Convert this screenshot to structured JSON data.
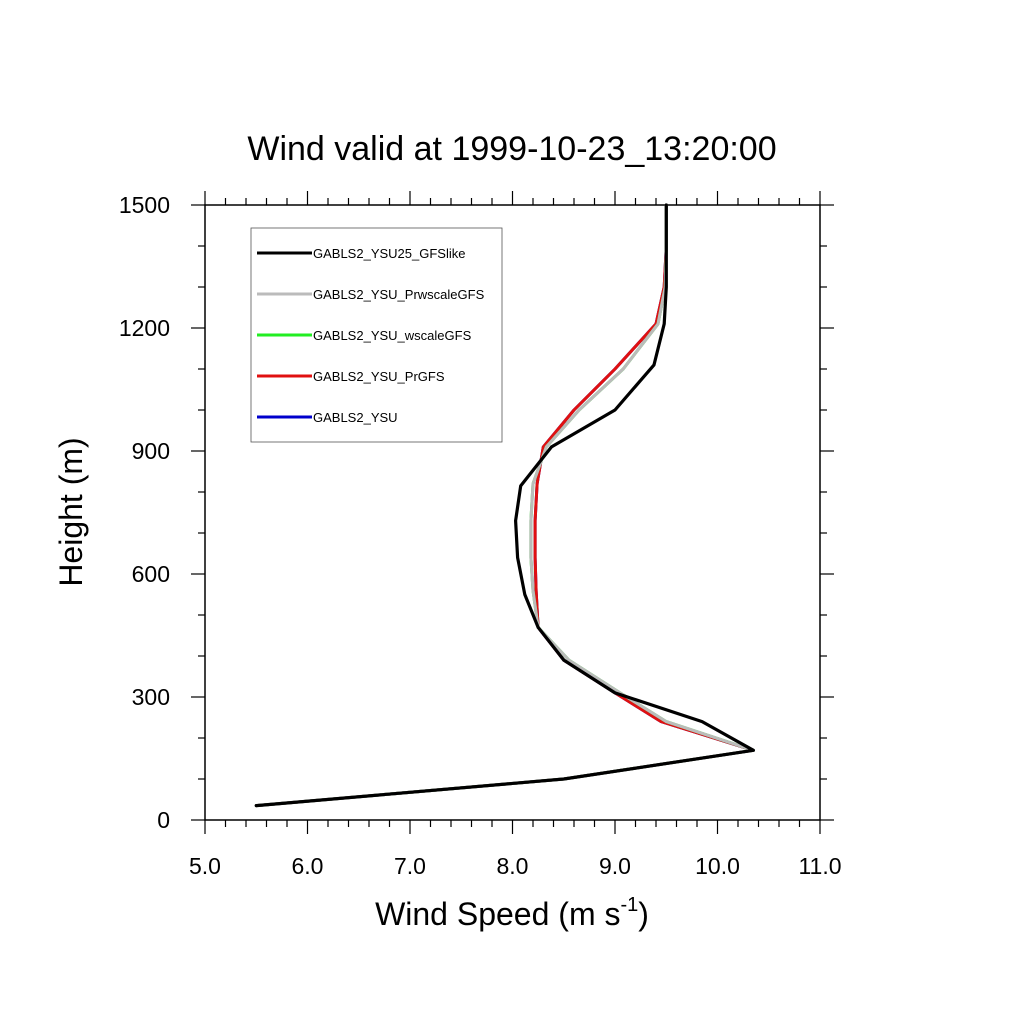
{
  "chart_data": {
    "type": "line",
    "title": "Wind valid at 1999-10-23_13:20:00",
    "xlabel": "Wind Speed (m s",
    "xlabel_superscript": "-1",
    "xlabel_suffix": ")",
    "ylabel": "Height (m)",
    "xlim": [
      5.0,
      11.0
    ],
    "ylim": [
      0,
      1500
    ],
    "x_ticks": [
      5.0,
      6.0,
      7.0,
      8.0,
      9.0,
      10.0,
      11.0
    ],
    "x_tick_labels": [
      "5.0",
      "6.0",
      "7.0",
      "8.0",
      "9.0",
      "10.0",
      "11.0"
    ],
    "y_ticks": [
      0,
      300,
      600,
      900,
      1200,
      1500
    ],
    "y_tick_labels": [
      "0",
      "300",
      "600",
      "900",
      "1200",
      "1500"
    ],
    "grid": false,
    "legend_position": "top-left",
    "series": [
      {
        "name": "GABLS2_YSU",
        "color": "#0000cc",
        "x": [
          5.5,
          8.5,
          10.35,
          9.45,
          9.0,
          8.5,
          8.25,
          8.23,
          8.22,
          8.22,
          8.24,
          8.3,
          8.6,
          9.0,
          9.4,
          9.48,
          9.5,
          9.5
        ],
        "y": [
          35,
          100,
          170,
          240,
          310,
          390,
          470,
          560,
          640,
          730,
          820,
          910,
          1000,
          1100,
          1210,
          1300,
          1400,
          1500
        ]
      },
      {
        "name": "GABLS2_YSU_PrGFS",
        "color": "#e01010",
        "x": [
          5.5,
          8.5,
          10.35,
          9.45,
          9.0,
          8.5,
          8.25,
          8.23,
          8.22,
          8.22,
          8.24,
          8.3,
          8.6,
          9.0,
          9.4,
          9.48,
          9.5,
          9.5
        ],
        "y": [
          35,
          100,
          170,
          240,
          310,
          390,
          470,
          560,
          640,
          730,
          820,
          910,
          1000,
          1100,
          1210,
          1300,
          1400,
          1500
        ]
      },
      {
        "name": "GABLS2_YSU_wscaleGFS",
        "color": "#22ee22",
        "x": [
          5.5,
          8.5,
          10.35,
          9.5,
          9.05,
          8.55,
          8.25,
          8.2,
          8.18,
          8.18,
          8.2,
          8.33,
          8.65,
          9.08,
          9.42,
          9.49,
          9.5,
          9.5
        ],
        "y": [
          35,
          100,
          170,
          240,
          310,
          390,
          470,
          560,
          640,
          730,
          820,
          910,
          1000,
          1100,
          1210,
          1300,
          1400,
          1500
        ]
      },
      {
        "name": "GABLS2_YSU_PrwscaleGFS",
        "color": "#bbbbbb",
        "x": [
          5.5,
          8.5,
          10.35,
          9.5,
          9.05,
          8.55,
          8.25,
          8.2,
          8.18,
          8.18,
          8.2,
          8.33,
          8.65,
          9.08,
          9.42,
          9.49,
          9.5,
          9.5
        ],
        "y": [
          35,
          100,
          170,
          240,
          310,
          390,
          470,
          560,
          640,
          730,
          820,
          910,
          1000,
          1100,
          1210,
          1300,
          1400,
          1500
        ]
      },
      {
        "name": "GABLS2_YSU25_GFSlike",
        "color": "#000000",
        "x": [
          5.5,
          8.5,
          10.35,
          9.85,
          9.0,
          8.5,
          8.25,
          8.12,
          8.05,
          8.03,
          8.08,
          8.38,
          9.0,
          9.38,
          9.48,
          9.5,
          9.5
        ],
        "y": [
          35,
          100,
          170,
          240,
          310,
          390,
          470,
          550,
          640,
          730,
          815,
          910,
          1000,
          1110,
          1210,
          1300,
          1500
        ]
      }
    ],
    "legend_order": [
      "GABLS2_YSU25_GFSlike",
      "GABLS2_YSU_PrwscaleGFS",
      "GABLS2_YSU_wscaleGFS",
      "GABLS2_YSU_PrGFS",
      "GABLS2_YSU"
    ]
  }
}
